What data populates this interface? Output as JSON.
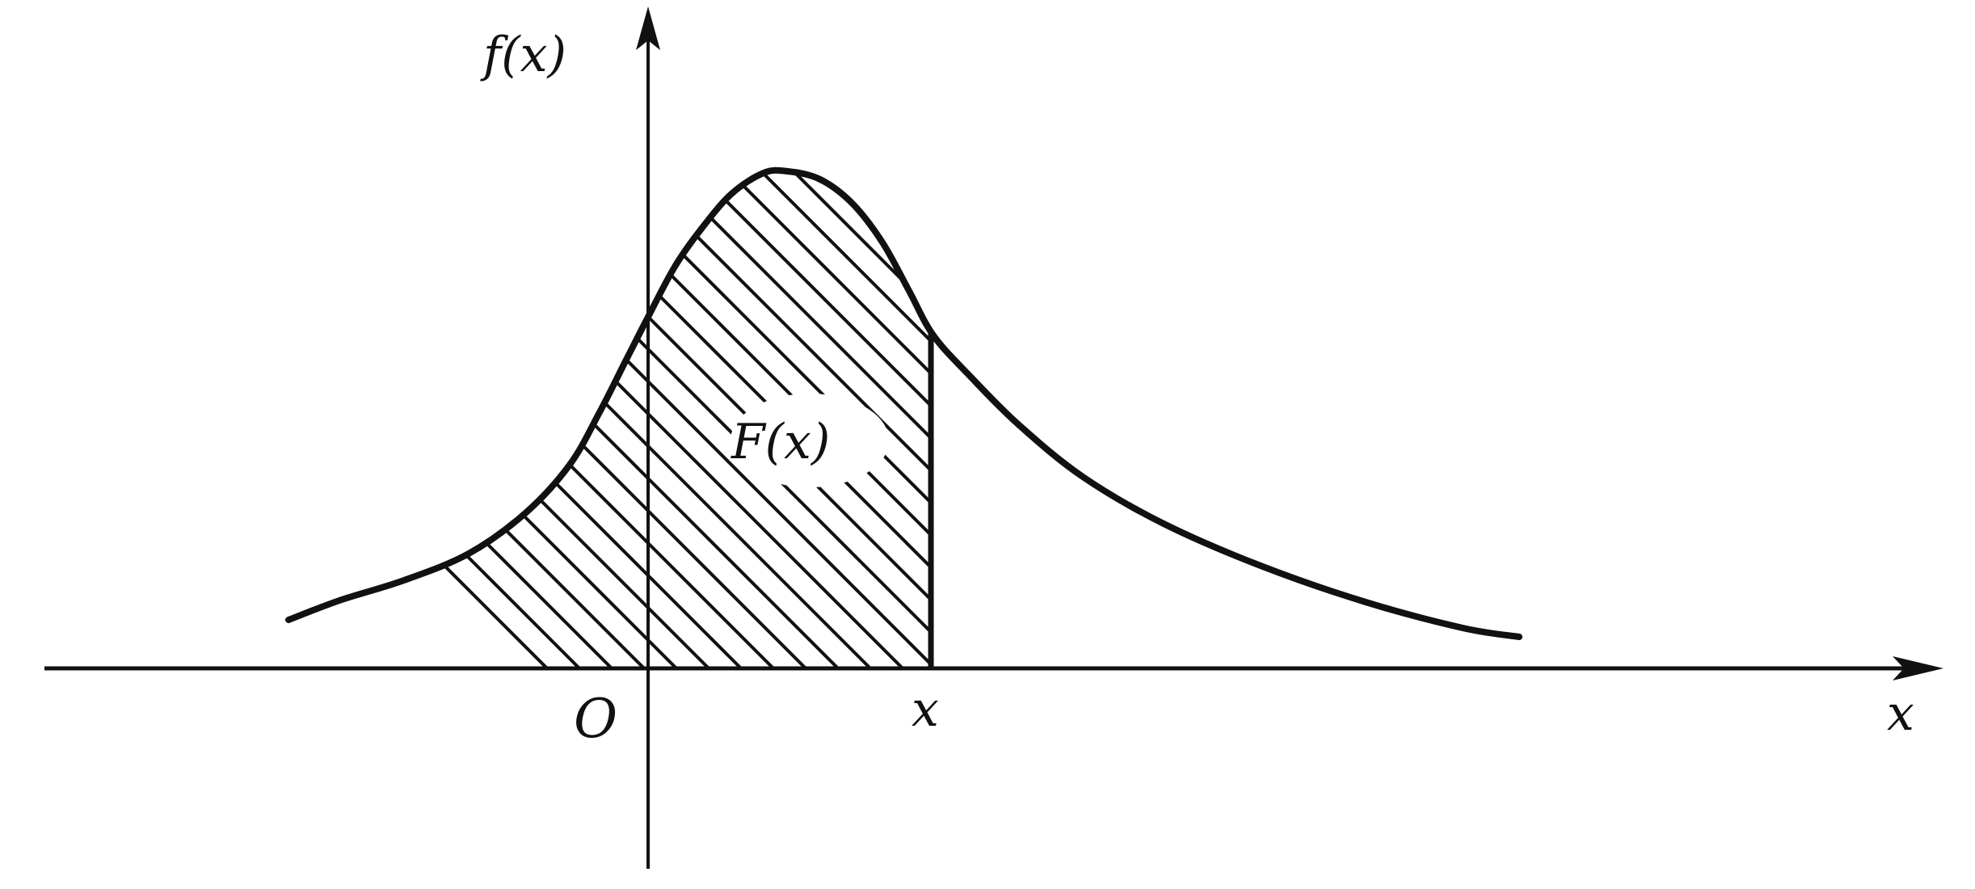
{
  "colors": {
    "ink": "#111111",
    "background": "#ffffff"
  },
  "labels": {
    "y_axis": "f(x)",
    "x_axis": "x",
    "origin": "O",
    "x_mark": "x",
    "area": "F(x)"
  },
  "icons": {
    "x_axis_arrow": "arrow-right-icon",
    "y_axis_arrow": "arrow-up-icon"
  }
}
